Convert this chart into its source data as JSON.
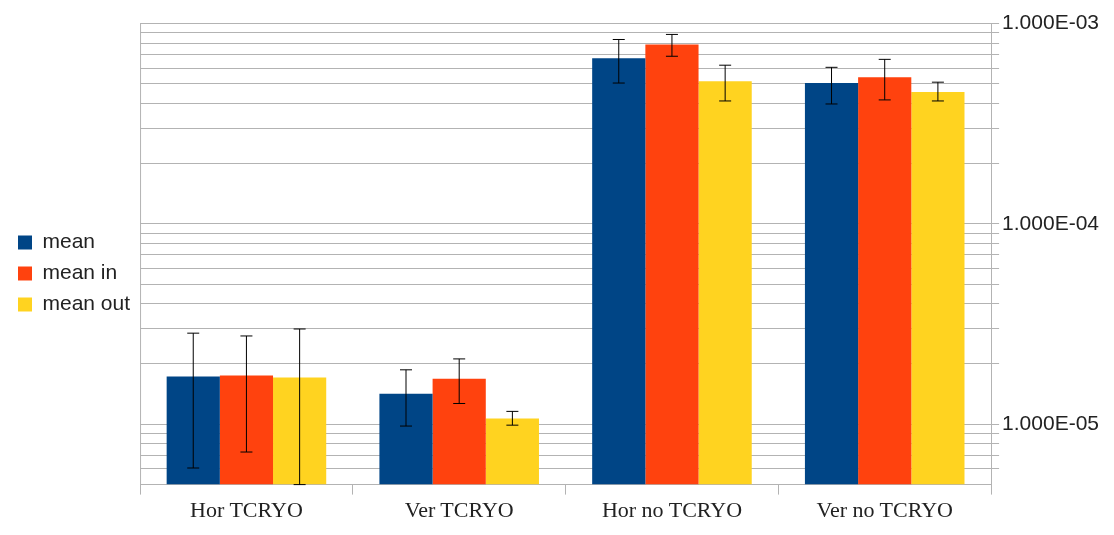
{
  "chart_data": {
    "type": "bar",
    "categories": [
      "Hor TCRYO",
      "Ver TCRYO",
      "Hor no TCRYO",
      "Ver no TCRYO"
    ],
    "series": [
      {
        "name": "mean",
        "color": "#004586",
        "values": [
          1.73e-05,
          1.42e-05,
          0.000671,
          0.000505
        ],
        "errors": [
          [
            6.05e-06,
            2.85e-05
          ],
          [
            9.8e-06,
            1.87e-05
          ],
          [
            0.000505,
            0.000833
          ],
          [
            0.000397,
            0.000605
          ]
        ]
      },
      {
        "name": "mean in",
        "color": "#ff420e",
        "values": [
          1.75e-05,
          1.69e-05,
          0.000787,
          0.00054
        ],
        "errors": [
          [
            7.27e-06,
            2.76e-05
          ],
          [
            1.27e-05,
            2.12e-05
          ],
          [
            0.000687,
            0.000883
          ],
          [
            0.000416,
            0.000663
          ]
        ]
      },
      {
        "name": "mean out",
        "color": "#ffd320",
        "values": [
          1.71e-05,
          1.07e-05,
          0.000516,
          0.000455
        ],
        "errors": [
          [
            5e-06,
            2.99e-05
          ],
          [
            9.9e-06,
            1.16e-05
          ],
          [
            0.000411,
            0.00062
          ],
          [
            0.000411,
            0.00051
          ]
        ]
      }
    ],
    "log": "y",
    "ylim": [
      5e-06,
      0.001
    ],
    "yticks": [
      {
        "value": 6e-06,
        "label": null
      },
      {
        "value": 7e-06,
        "label": null
      },
      {
        "value": 8e-06,
        "label": null
      },
      {
        "value": 9e-06,
        "label": null
      },
      {
        "value": 1e-05,
        "label": "1.000E-05"
      },
      {
        "value": 2e-05,
        "label": null
      },
      {
        "value": 3e-05,
        "label": null
      },
      {
        "value": 4e-05,
        "label": null
      },
      {
        "value": 5e-05,
        "label": null
      },
      {
        "value": 6e-05,
        "label": null
      },
      {
        "value": 7e-05,
        "label": null
      },
      {
        "value": 8e-05,
        "label": null
      },
      {
        "value": 9e-05,
        "label": null
      },
      {
        "value": 0.0001,
        "label": "1.000E-04"
      },
      {
        "value": 0.0002,
        "label": null
      },
      {
        "value": 0.0003,
        "label": null
      },
      {
        "value": 0.0004,
        "label": null
      },
      {
        "value": 0.0005,
        "label": null
      },
      {
        "value": 0.0006,
        "label": null
      },
      {
        "value": 0.0007,
        "label": null
      },
      {
        "value": 0.0008,
        "label": null
      },
      {
        "value": 0.0009,
        "label": null
      },
      {
        "value": 0.001,
        "label": "1.000E-03"
      }
    ],
    "grid": "y",
    "legend": "left"
  }
}
